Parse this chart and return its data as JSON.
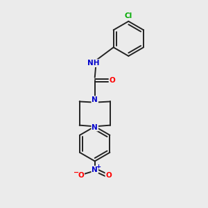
{
  "background_color": "#ebebeb",
  "atom_colors": {
    "C": "#000000",
    "N": "#0000cc",
    "O": "#ff0000",
    "Cl": "#00aa00",
    "H": "#5599aa"
  },
  "bond_color": "#222222",
  "bond_width": 1.4,
  "figsize": [
    3.0,
    3.0
  ],
  "dpi": 100,
  "xlim": [
    0,
    10
  ],
  "ylim": [
    0,
    10
  ]
}
